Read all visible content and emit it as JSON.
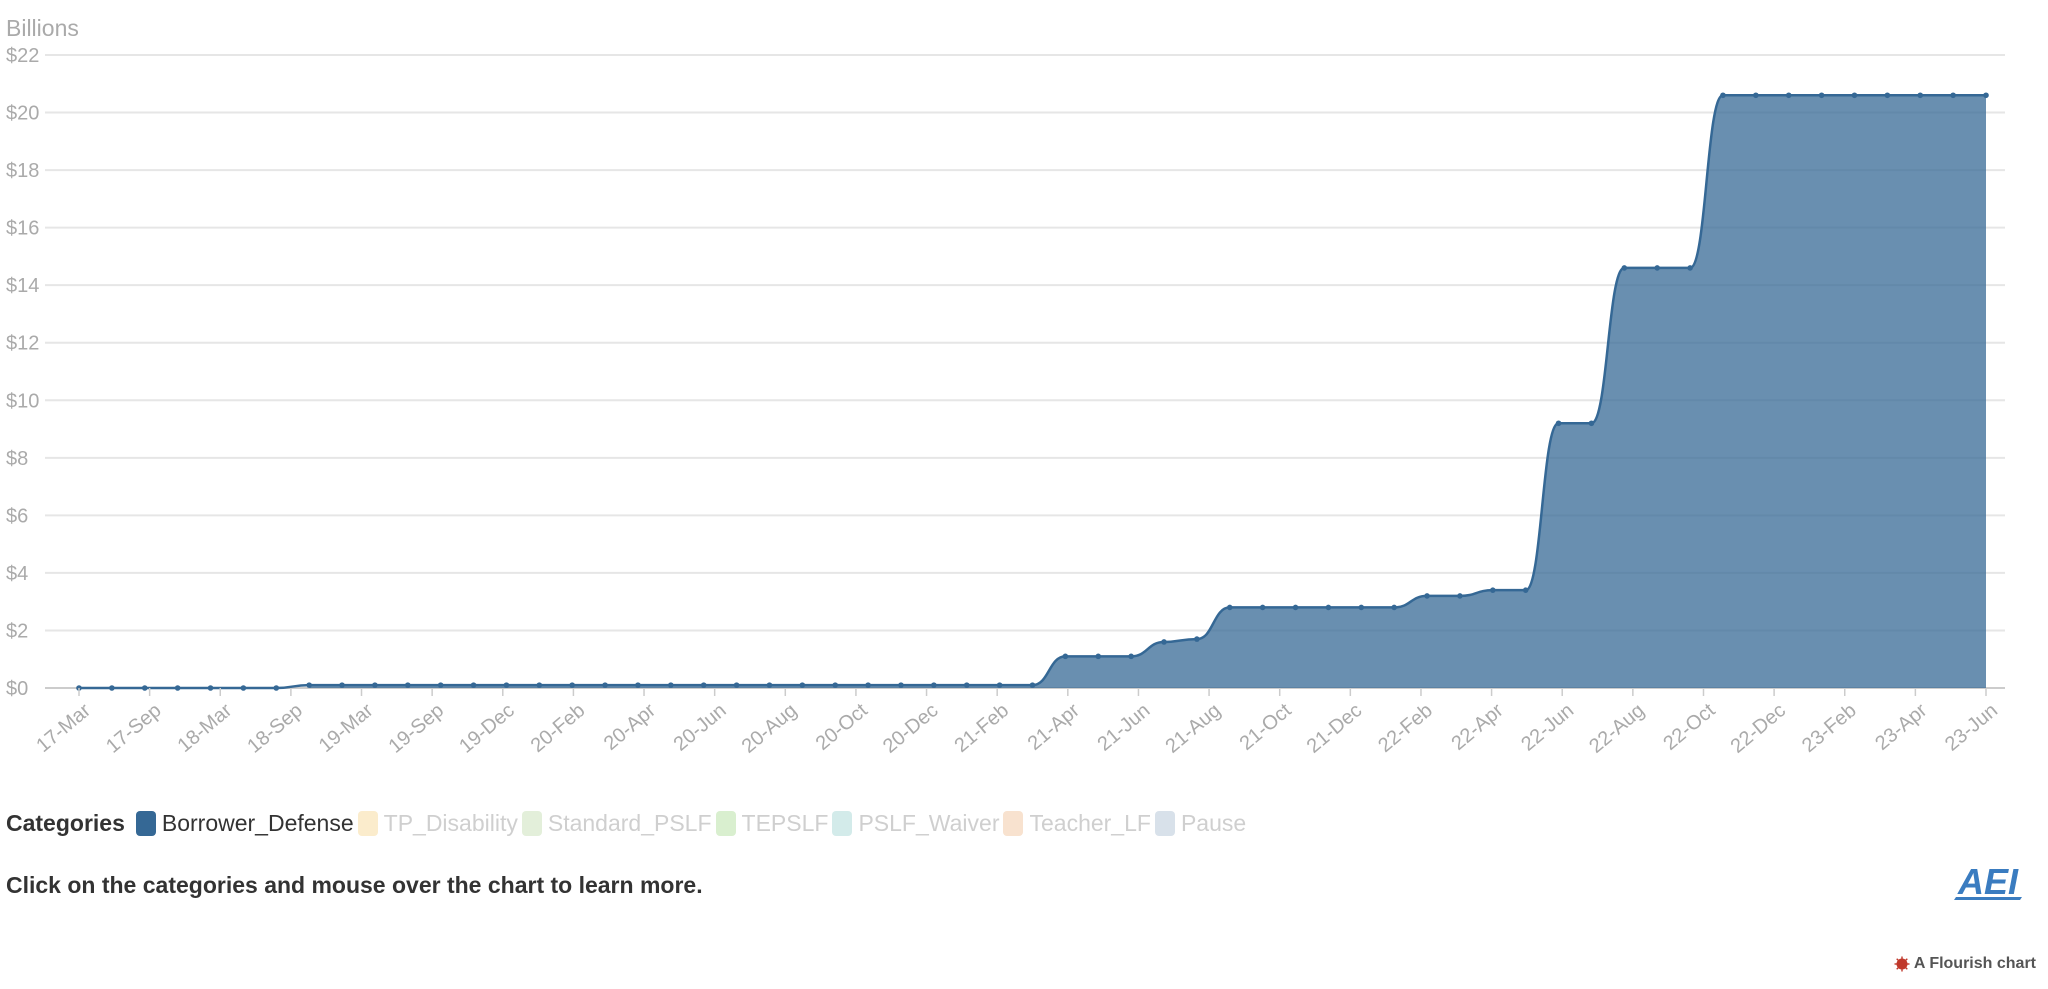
{
  "chart_data": {
    "type": "area",
    "ylabel": "Billions",
    "ylim": [
      0,
      22
    ],
    "yticks": [
      "$0",
      "$2",
      "$4",
      "$6",
      "$8",
      "$10",
      "$12",
      "$14",
      "$16",
      "$18",
      "$20",
      "$22"
    ],
    "xtick_labels": [
      "17-Mar",
      "17-Sep",
      "18-Mar",
      "18-Sep",
      "19-Mar",
      "19-Sep",
      "19-Dec",
      "20-Feb",
      "20-Apr",
      "20-Jun",
      "20-Aug",
      "20-Oct",
      "20-Dec",
      "21-Feb",
      "21-Apr",
      "21-Jun",
      "21-Aug",
      "21-Oct",
      "21-Dec",
      "22-Feb",
      "22-Apr",
      "22-Jun",
      "22-Aug",
      "22-Oct",
      "22-Dec",
      "23-Feb",
      "23-Apr",
      "23-Jun"
    ],
    "grid": true,
    "series": [
      {
        "name": "Borrower_Defense",
        "color": "#356895",
        "values": [
          0,
          0,
          0,
          0,
          0,
          0,
          0,
          0.1,
          0.1,
          0.1,
          0.1,
          0.1,
          0.1,
          0.1,
          0.1,
          0.1,
          0.1,
          0.1,
          0.1,
          0.1,
          0.1,
          0.1,
          0.1,
          0.1,
          0.1,
          0.1,
          0.1,
          0.1,
          0.1,
          0.1,
          1.1,
          1.1,
          1.1,
          1.6,
          1.7,
          2.8,
          2.8,
          2.8,
          2.8,
          2.8,
          2.8,
          3.2,
          3.2,
          3.4,
          3.4,
          9.2,
          9.2,
          14.6,
          14.6,
          14.6,
          20.6,
          20.6,
          20.6,
          20.6,
          20.6,
          20.6,
          20.6,
          20.6,
          20.6
        ]
      }
    ]
  },
  "legend": {
    "title": "Categories",
    "items": [
      {
        "label": "Borrower_Defense",
        "color": "#356895",
        "active": true
      },
      {
        "label": "TP_Disability",
        "color": "#fbeccc",
        "active": false
      },
      {
        "label": "Standard_PSLF",
        "color": "#e3efda",
        "active": false
      },
      {
        "label": "TEPSLF",
        "color": "#d9efcf",
        "active": false
      },
      {
        "label": "PSLF_Waiver",
        "color": "#d3ebea",
        "active": false
      },
      {
        "label": "Teacher_LF",
        "color": "#f8e2cf",
        "active": false
      },
      {
        "label": "Pause",
        "color": "#d8e1ea",
        "active": false
      }
    ]
  },
  "instruction": "Click on the categories and mouse over the chart to learn more.",
  "logo_text": "AEI",
  "credit": "A Flourish chart",
  "colors": {
    "accent": "#356895",
    "grid": "#e6e6e6",
    "axis_text": "#aaaaaa",
    "logo": "#3a7cc0",
    "credit_icon": "#c0392b"
  }
}
